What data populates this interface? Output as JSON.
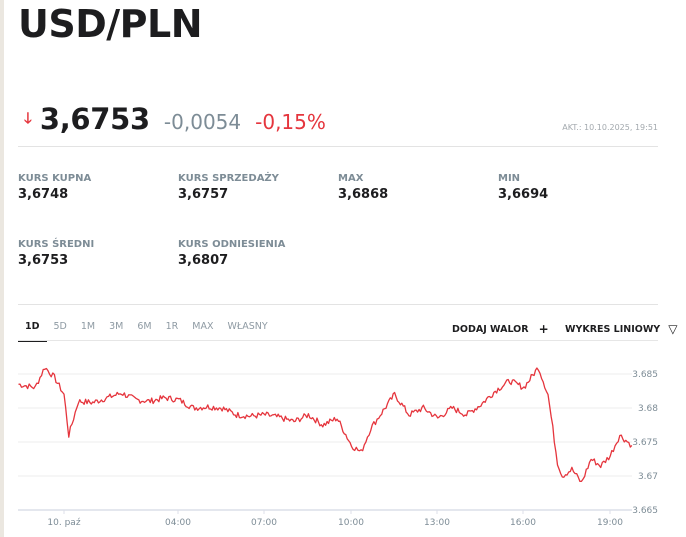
{
  "header": {
    "title": "USD/PLN"
  },
  "quote": {
    "direction_icon": "arrow-down-icon",
    "price": "3,6753",
    "change": "-0,0054",
    "change_pct": "-0,15%",
    "updated": "AKT.: 10.10.2025, 19:51",
    "colors": {
      "down": "#e5353d",
      "neutral": "#7d8c96"
    }
  },
  "stats": [
    {
      "label": "KURS KUPNA",
      "value": "3,6748"
    },
    {
      "label": "KURS SPRZEDAŻY",
      "value": "3,6757"
    },
    {
      "label": "MAX",
      "value": "3,6868"
    },
    {
      "label": "MIN",
      "value": "3,6694"
    },
    {
      "label": "KURS ŚREDNI",
      "value": "3,6753"
    },
    {
      "label": "KURS ODNIESIENIA",
      "value": "3,6807"
    }
  ],
  "range_tabs": [
    {
      "label": "1D",
      "active": true
    },
    {
      "label": "5D",
      "active": false
    },
    {
      "label": "1M",
      "active": false
    },
    {
      "label": "3M",
      "active": false
    },
    {
      "label": "6M",
      "active": false
    },
    {
      "label": "1R",
      "active": false
    },
    {
      "label": "MAX",
      "active": false
    },
    {
      "label": "WŁASNY",
      "active": false
    }
  ],
  "controls": {
    "add_security": {
      "label": "DODAJ WALOR",
      "icon": "plus-icon",
      "glyph": "+"
    },
    "chart_type": {
      "label": "WYKRES LINIOWY",
      "icon": "triangle-down-icon",
      "glyph": "▽"
    }
  },
  "chart_data": {
    "type": "line",
    "title": "USD/PLN intraday 1D",
    "xlabel": "",
    "ylabel": "",
    "line_color": "#e5353d",
    "grid": true,
    "ylim": [
      3.665,
      3.687
    ],
    "y_ticks": [
      "3.685",
      "3.68",
      "3.675",
      "3.67",
      "3.665"
    ],
    "x_ticks": [
      "10. paź",
      "04:00",
      "07:00",
      "10:00",
      "13:00",
      "16:00",
      "19:00"
    ],
    "x": [
      "22:25",
      "23:00",
      "23:20",
      "23:40",
      "00:00",
      "00:10",
      "00:30",
      "01:00",
      "01:30",
      "02:00",
      "02:30",
      "03:00",
      "03:30",
      "04:00",
      "04:30",
      "05:00",
      "05:30",
      "06:00",
      "06:30",
      "07:00",
      "07:30",
      "08:00",
      "08:30",
      "09:00",
      "09:30",
      "10:00",
      "10:20",
      "10:40",
      "11:00",
      "11:30",
      "12:00",
      "12:30",
      "13:00",
      "13:30",
      "14:00",
      "14:30",
      "15:00",
      "15:30",
      "16:00",
      "16:30",
      "16:50",
      "17:10",
      "17:20",
      "17:40",
      "18:00",
      "18:20",
      "18:40",
      "19:00",
      "19:20",
      "19:45"
    ],
    "values": [
      3.6835,
      3.683,
      3.686,
      3.6845,
      3.682,
      3.676,
      3.681,
      3.6808,
      3.6815,
      3.6822,
      3.6812,
      3.681,
      3.6815,
      3.6812,
      3.68,
      3.6802,
      3.68,
      3.679,
      3.6788,
      3.679,
      3.6786,
      3.678,
      3.679,
      3.6775,
      3.6785,
      3.6745,
      3.6735,
      3.677,
      3.679,
      3.682,
      3.679,
      3.68,
      3.6785,
      3.68,
      3.679,
      3.6805,
      3.6825,
      3.684,
      3.683,
      3.686,
      3.682,
      3.672,
      3.67,
      3.671,
      3.669,
      3.6725,
      3.6715,
      3.673,
      3.676,
      3.6745
    ]
  }
}
